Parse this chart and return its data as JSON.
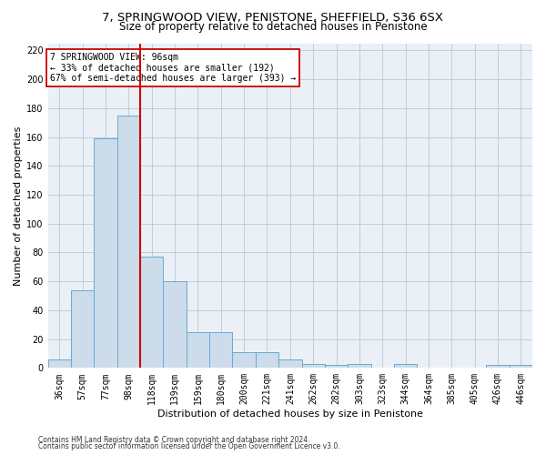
{
  "title1": "7, SPRINGWOOD VIEW, PENISTONE, SHEFFIELD, S36 6SX",
  "title2": "Size of property relative to detached houses in Penistone",
  "xlabel": "Distribution of detached houses by size in Penistone",
  "ylabel": "Number of detached properties",
  "categories": [
    "36sqm",
    "57sqm",
    "77sqm",
    "98sqm",
    "118sqm",
    "139sqm",
    "159sqm",
    "180sqm",
    "200sqm",
    "221sqm",
    "241sqm",
    "262sqm",
    "282sqm",
    "303sqm",
    "323sqm",
    "344sqm",
    "364sqm",
    "385sqm",
    "405sqm",
    "426sqm",
    "446sqm"
  ],
  "values": [
    6,
    54,
    159,
    175,
    77,
    60,
    25,
    25,
    11,
    11,
    6,
    3,
    2,
    3,
    0,
    3,
    0,
    0,
    0,
    2,
    2
  ],
  "bar_color": "#ccdcea",
  "bar_edge_color": "#6aaad4",
  "vline_x": 3.5,
  "vline_color": "#cc0000",
  "annotation_text": "7 SPRINGWOOD VIEW: 96sqm\n← 33% of detached houses are smaller (192)\n67% of semi-detached houses are larger (393) →",
  "annotation_box_color": "#ffffff",
  "annotation_box_edge": "#cc0000",
  "ylim": [
    0,
    225
  ],
  "yticks": [
    0,
    20,
    40,
    60,
    80,
    100,
    120,
    140,
    160,
    180,
    200,
    220
  ],
  "footnote1": "Contains HM Land Registry data © Crown copyright and database right 2024.",
  "footnote2": "Contains public sector information licensed under the Open Government Licence v3.0.",
  "bg_color": "#ffffff",
  "plot_bg_color": "#eaf0f6",
  "grid_color": "#b8c8d8",
  "title1_fontsize": 9.5,
  "title2_fontsize": 8.5,
  "tick_fontsize": 7,
  "ylabel_fontsize": 8,
  "xlabel_fontsize": 8,
  "annot_fontsize": 7,
  "footnote_fontsize": 5.5
}
